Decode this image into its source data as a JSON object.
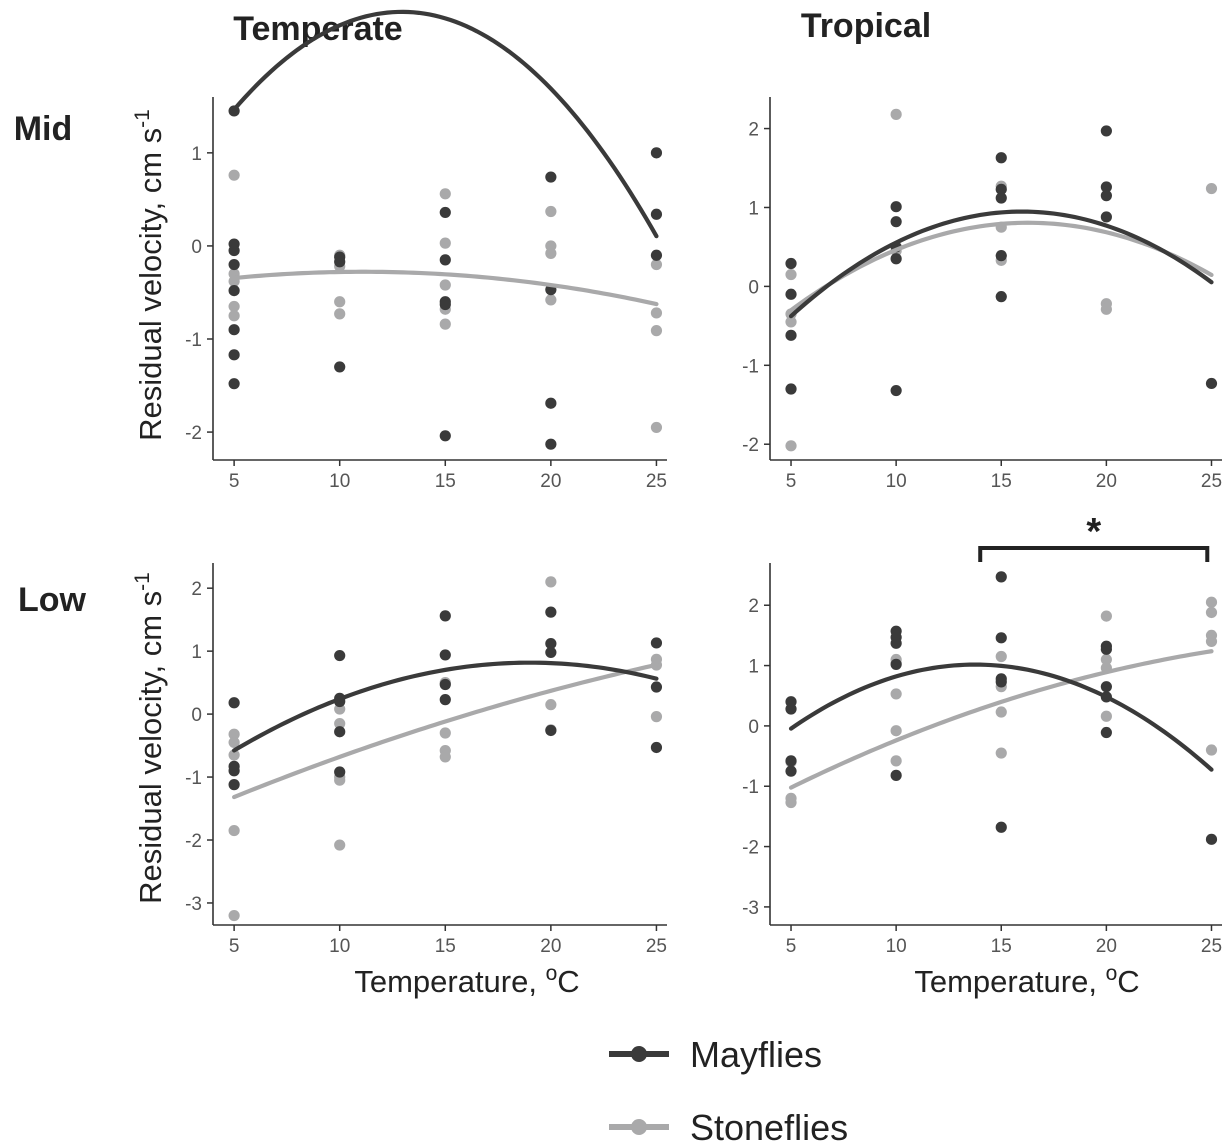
{
  "colors": {
    "mayflies": "#3a3a3a",
    "stoneflies": "#a9a9aa",
    "axis": "#333333"
  },
  "column_titles": [
    "Temperate",
    "Tropical"
  ],
  "row_titles": [
    "Mid",
    "Low"
  ],
  "ylabel": {
    "main": "Residual velocity, cm s",
    "sup": "-1"
  },
  "xlabel": {
    "main": "Temperature, ",
    "degree": "o",
    "unit": "C"
  },
  "legend": [
    {
      "key": "mayflies",
      "label": "Mayflies"
    },
    {
      "key": "stoneflies",
      "label": "Stoneflies"
    }
  ],
  "annotation": {
    "text": "*",
    "x_from": 14,
    "x_to": 24.8
  },
  "chart_data": [
    {
      "type": "scatter",
      "panel": "Mid-Temperate",
      "xlim": [
        4,
        25.5
      ],
      "ylim": [
        -2.3,
        1.6
      ],
      "xticks": [
        5,
        10,
        15,
        20,
        25
      ],
      "yticks": [
        -2,
        -1,
        0,
        1
      ],
      "series": [
        {
          "name": "Mayflies",
          "x": [
            5,
            5,
            5,
            5,
            5,
            5,
            5,
            5,
            10,
            10,
            10,
            15,
            15,
            15,
            15,
            15,
            20,
            20,
            20,
            20,
            25,
            25,
            25
          ],
          "y": [
            1.45,
            0.02,
            -0.05,
            -0.2,
            -0.48,
            -0.9,
            -1.17,
            -1.48,
            -0.12,
            -0.17,
            -1.3,
            0.36,
            -0.15,
            -0.6,
            -0.63,
            -2.04,
            0.74,
            -0.47,
            -1.69,
            -2.13,
            1.0,
            0.34,
            -0.1
          ],
          "fit": [
            -0.27,
            0.43,
            -0.0166
          ]
        },
        {
          "name": "Stoneflies",
          "x": [
            5,
            5,
            5,
            5,
            5,
            10,
            10,
            10,
            10,
            15,
            15,
            15,
            15,
            15,
            20,
            20,
            20,
            20,
            25,
            25,
            25,
            25
          ],
          "y": [
            0.76,
            -0.3,
            -0.38,
            -0.65,
            -0.75,
            -0.1,
            -0.22,
            -0.6,
            -0.73,
            0.56,
            0.03,
            -0.42,
            -0.68,
            -0.84,
            0.37,
            0.0,
            -0.08,
            -0.58,
            -0.2,
            -0.72,
            -0.91,
            -1.95
          ],
          "fit": [
            -0.5,
            0.04,
            -0.0018
          ]
        }
      ]
    },
    {
      "type": "scatter",
      "panel": "Mid-Tropical",
      "xlim": [
        4,
        25.5
      ],
      "ylim": [
        -2.2,
        2.4
      ],
      "xticks": [
        5,
        10,
        15,
        20,
        25
      ],
      "yticks": [
        -2,
        -1,
        0,
        1,
        2
      ],
      "series": [
        {
          "name": "Mayflies",
          "x": [
            5,
            5,
            5,
            5,
            10,
            10,
            10,
            10,
            10,
            15,
            15,
            15,
            15,
            15,
            20,
            20,
            20,
            20,
            25
          ],
          "y": [
            0.29,
            -0.1,
            -0.62,
            -1.3,
            1.01,
            0.82,
            0.5,
            0.35,
            -1.32,
            1.63,
            1.23,
            1.12,
            0.39,
            -0.13,
            1.97,
            1.26,
            1.15,
            0.88,
            -1.23
          ],
          "fit": [
            -1.86,
            0.3515,
            -0.011
          ]
        },
        {
          "name": "Stoneflies",
          "x": [
            5,
            5,
            5,
            5,
            10,
            10,
            15,
            15,
            15,
            20,
            20,
            25
          ],
          "y": [
            0.15,
            -0.35,
            -0.45,
            -2.02,
            2.18,
            0.45,
            1.27,
            0.75,
            0.33,
            -0.22,
            -0.29,
            1.24
          ],
          "fit": [
            -1.5,
            0.2833,
            -0.0087
          ]
        }
      ]
    },
    {
      "type": "scatter",
      "panel": "Low-Temperate",
      "xlim": [
        4,
        25.5
      ],
      "ylim": [
        -3.35,
        2.4
      ],
      "xticks": [
        5,
        10,
        15,
        20,
        25
      ],
      "yticks": [
        -3,
        -2,
        -1,
        0,
        1,
        2
      ],
      "series": [
        {
          "name": "Mayflies",
          "x": [
            5,
            5,
            5,
            5,
            10,
            10,
            10,
            10,
            10,
            15,
            15,
            15,
            15,
            20,
            20,
            20,
            20,
            25,
            25,
            25
          ],
          "y": [
            0.18,
            -0.83,
            -0.9,
            -1.12,
            0.93,
            0.25,
            0.2,
            -0.28,
            -0.92,
            1.56,
            0.94,
            0.47,
            0.23,
            1.62,
            1.12,
            0.98,
            -0.26,
            1.13,
            0.43,
            -0.53
          ],
          "fit": [
            -1.75,
            0.27,
            -0.0071
          ]
        },
        {
          "name": "Stoneflies",
          "x": [
            5,
            5,
            5,
            5,
            5,
            10,
            10,
            10,
            10,
            10,
            15,
            15,
            15,
            15,
            20,
            20,
            20,
            25,
            25,
            25
          ],
          "y": [
            -0.32,
            -0.45,
            -0.65,
            -1.85,
            -3.2,
            0.08,
            -0.15,
            -1.0,
            -1.05,
            -2.08,
            0.5,
            -0.3,
            -0.58,
            -0.68,
            2.1,
            0.15,
            -0.25,
            0.87,
            0.78,
            -0.04
          ],
          "fit": [
            -2.03,
            0.15,
            -0.0015
          ]
        }
      ]
    },
    {
      "type": "scatter",
      "panel": "Low-Tropical",
      "xlim": [
        4,
        25.5
      ],
      "ylim": [
        -3.3,
        2.7
      ],
      "xticks": [
        5,
        10,
        15,
        20,
        25
      ],
      "yticks": [
        -3,
        -2,
        -1,
        0,
        1,
        2
      ],
      "series": [
        {
          "name": "Mayflies",
          "x": [
            5,
            5,
            5,
            5,
            10,
            10,
            10,
            10,
            10,
            15,
            15,
            15,
            15,
            15,
            20,
            20,
            20,
            20,
            20,
            25
          ],
          "y": [
            0.4,
            0.28,
            -0.58,
            -0.75,
            1.57,
            1.47,
            1.37,
            1.02,
            -0.82,
            2.47,
            1.46,
            0.78,
            0.73,
            -1.68,
            1.32,
            1.27,
            0.65,
            0.48,
            -0.11,
            -1.88
          ],
          "fit": [
            -1.6,
            0.38,
            -0.0138
          ]
        },
        {
          "name": "Stoneflies",
          "x": [
            5,
            5,
            5,
            10,
            10,
            10,
            10,
            10,
            15,
            15,
            15,
            15,
            20,
            20,
            20,
            20,
            25,
            25,
            25,
            25,
            25
          ],
          "y": [
            -0.6,
            -1.2,
            -1.27,
            1.1,
            1.04,
            0.53,
            -0.08,
            -0.58,
            1.15,
            0.65,
            0.23,
            -0.45,
            1.82,
            1.1,
            0.96,
            0.16,
            2.05,
            1.88,
            1.5,
            1.4,
            -0.4
          ],
          "fit": [
            -1.95,
            0.2,
            -0.0029
          ]
        }
      ]
    }
  ]
}
